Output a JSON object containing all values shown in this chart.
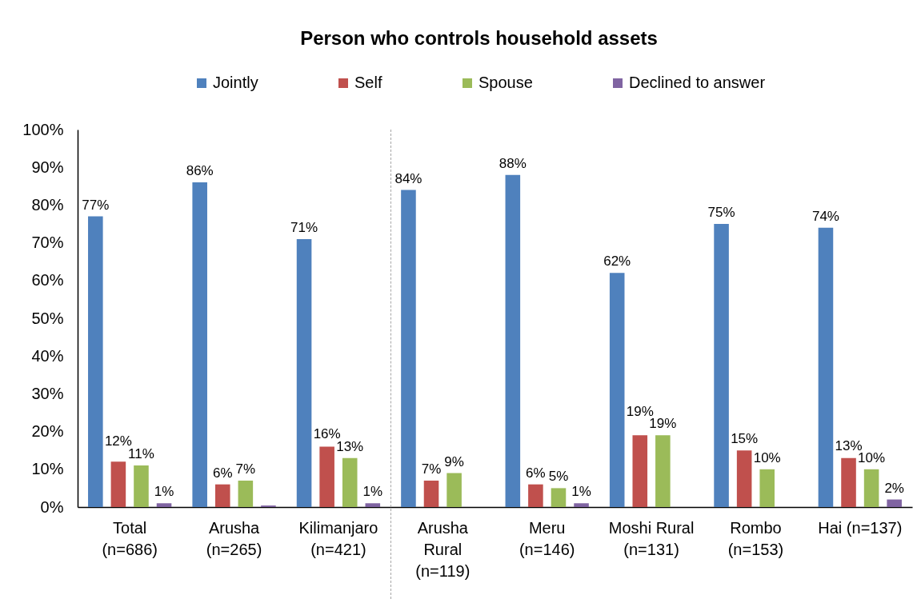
{
  "chart_data": {
    "type": "bar",
    "title": "Person who controls household assets",
    "categories": [
      "Total\n(n=686)",
      "Arusha\n(n=265)",
      "Kilimanjaro\n(n=421)",
      "Arusha\nRural\n(n=119)",
      "Meru\n(n=146)",
      "Moshi Rural\n(n=131)",
      "Rombo\n(n=153)",
      "Hai (n=137)"
    ],
    "series": [
      {
        "name": "Jointly",
        "color": "#4f81bd",
        "values": [
          77,
          86,
          71,
          84,
          88,
          62,
          75,
          74
        ],
        "value_labels": [
          "77%",
          "86%",
          "71%",
          "84%",
          "88%",
          "62%",
          "75%",
          "74%"
        ]
      },
      {
        "name": "Self",
        "color": "#c0504d",
        "values": [
          12,
          6,
          16,
          7,
          6,
          19,
          15,
          13
        ],
        "value_labels": [
          "12%",
          "6%",
          "16%",
          "7%",
          "6%",
          "19%",
          "15%",
          "13%"
        ]
      },
      {
        "name": "Spouse",
        "color": "#9bbb59",
        "values": [
          11,
          7,
          13,
          9,
          5,
          19,
          10,
          10
        ],
        "value_labels": [
          "11%",
          "7%",
          "13%",
          "9%",
          "5%",
          "19%",
          "10%",
          "10%"
        ]
      },
      {
        "name": "Declined to answer",
        "color": "#8064a2",
        "values": [
          1,
          0.4,
          1,
          null,
          1,
          null,
          null,
          2
        ],
        "value_labels": [
          "1%",
          null,
          "1%",
          null,
          "1%",
          null,
          null,
          "2%"
        ]
      }
    ],
    "ylim": [
      0,
      100
    ],
    "yticks": [
      {
        "value": 0,
        "label": "0%"
      },
      {
        "value": 10,
        "label": "10%"
      },
      {
        "value": 20,
        "label": "20%"
      },
      {
        "value": 30,
        "label": "30%"
      },
      {
        "value": 40,
        "label": "40%"
      },
      {
        "value": 50,
        "label": "50%"
      },
      {
        "value": 60,
        "label": "60%"
      },
      {
        "value": 70,
        "label": "70%"
      },
      {
        "value": 80,
        "label": "80%"
      },
      {
        "value": 90,
        "label": "90%"
      },
      {
        "value": 100,
        "label": "100%"
      }
    ],
    "legend": "top"
  }
}
